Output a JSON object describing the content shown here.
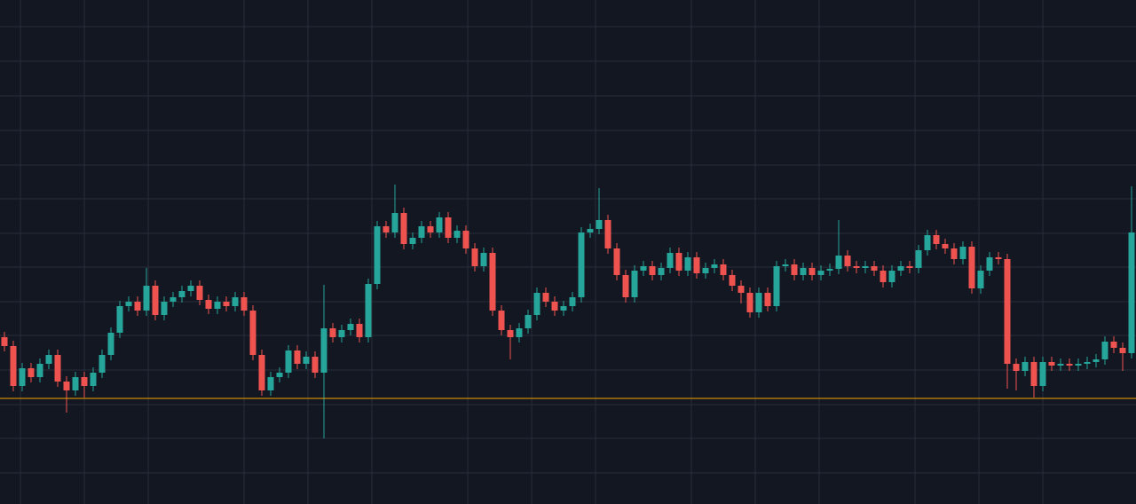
{
  "chart_data": {
    "type": "candlestick",
    "xlim": [
      -0.5,
      127.5
    ],
    "xticks": [
      1.8,
      9,
      16.2,
      27,
      34.2,
      41.4,
      52.2,
      59.4,
      66.6,
      77.4,
      84.6,
      91.8,
      102.6,
      109.8,
      117
    ],
    "ylim": [
      0,
      568
    ],
    "yticks": [
      538,
      499,
      460,
      421,
      382,
      344,
      305,
      267,
      228,
      190,
      151,
      112,
      74,
      35
    ],
    "grid": true,
    "up_color": "#26a69a",
    "down_color": "#ef5350",
    "price_line": 119,
    "price_line_color": "#f7a600",
    "open": [
      188,
      178,
      133,
      153,
      143,
      158,
      168,
      138,
      128,
      143,
      133,
      148,
      168,
      193,
      223,
      228,
      218,
      246,
      213,
      228,
      233,
      240,
      246,
      230,
      220,
      228,
      223,
      233,
      218,
      168,
      128,
      143,
      148,
      173,
      158,
      166,
      148,
      198,
      188,
      196,
      203,
      188,
      248,
      313,
      306,
      328,
      293,
      300,
      313,
      306,
      323,
      300,
      308,
      288,
      268,
      283,
      218,
      196,
      188,
      198,
      213,
      238,
      228,
      218,
      223,
      233,
      306,
      310,
      320,
      288,
      258,
      233,
      263,
      268,
      258,
      266,
      283,
      263,
      278,
      260,
      266,
      270,
      258,
      246,
      238,
      216,
      238,
      223,
      268,
      270,
      258,
      266,
      258,
      263,
      265,
      280,
      268,
      266,
      268,
      263,
      250,
      263,
      268,
      266,
      286,
      303,
      293,
      288,
      276,
      290,
      243,
      263,
      278,
      276,
      158,
      150,
      160,
      133,
      160,
      156,
      158,
      156,
      158,
      160,
      163,
      183,
      176,
      170
    ],
    "high": [
      194,
      184,
      159,
      159,
      164,
      174,
      174,
      144,
      149,
      149,
      154,
      174,
      199,
      229,
      234,
      234,
      266,
      252,
      234,
      239,
      246,
      252,
      252,
      236,
      234,
      234,
      239,
      239,
      224,
      174,
      149,
      154,
      179,
      179,
      172,
      172,
      247,
      204,
      202,
      209,
      209,
      254,
      319,
      319,
      360,
      334,
      306,
      319,
      319,
      329,
      329,
      314,
      314,
      294,
      289,
      289,
      224,
      202,
      204,
      219,
      244,
      244,
      234,
      229,
      239,
      312,
      316,
      356,
      326,
      294,
      264,
      269,
      274,
      274,
      272,
      289,
      289,
      284,
      284,
      272,
      276,
      276,
      264,
      252,
      244,
      244,
      244,
      274,
      276,
      276,
      272,
      272,
      269,
      271,
      320,
      286,
      274,
      274,
      274,
      269,
      269,
      274,
      274,
      292,
      309,
      309,
      299,
      294,
      296,
      296,
      269,
      284,
      284,
      282,
      164,
      166,
      166,
      166,
      166,
      164,
      164,
      164,
      166,
      169,
      189,
      189,
      182,
      358
    ],
    "low": [
      172,
      127,
      127,
      137,
      137,
      152,
      132,
      103,
      122,
      120,
      127,
      142,
      162,
      187,
      217,
      212,
      212,
      207,
      207,
      222,
      227,
      234,
      224,
      214,
      214,
      217,
      217,
      212,
      162,
      122,
      122,
      137,
      142,
      152,
      152,
      142,
      74,
      182,
      182,
      190,
      182,
      182,
      242,
      300,
      300,
      287,
      287,
      294,
      300,
      300,
      294,
      294,
      282,
      262,
      262,
      212,
      190,
      163,
      182,
      192,
      207,
      222,
      212,
      212,
      217,
      227,
      300,
      304,
      282,
      252,
      227,
      227,
      257,
      252,
      252,
      260,
      257,
      257,
      254,
      254,
      260,
      252,
      240,
      226,
      210,
      210,
      217,
      217,
      262,
      252,
      252,
      252,
      252,
      257,
      259,
      262,
      260,
      260,
      257,
      244,
      244,
      257,
      260,
      260,
      280,
      287,
      282,
      270,
      270,
      237,
      237,
      257,
      270,
      130,
      128,
      144,
      120,
      127,
      150,
      150,
      150,
      150,
      152,
      154,
      157,
      170,
      150,
      164
    ],
    "close": [
      178,
      133,
      153,
      143,
      158,
      168,
      138,
      128,
      143,
      133,
      148,
      168,
      193,
      223,
      228,
      218,
      246,
      213,
      228,
      233,
      240,
      246,
      230,
      220,
      228,
      223,
      233,
      218,
      168,
      128,
      143,
      148,
      173,
      158,
      166,
      148,
      198,
      188,
      196,
      203,
      188,
      248,
      313,
      306,
      328,
      293,
      300,
      313,
      306,
      323,
      300,
      308,
      288,
      268,
      283,
      218,
      196,
      188,
      198,
      213,
      238,
      228,
      218,
      223,
      233,
      306,
      310,
      320,
      288,
      258,
      233,
      263,
      268,
      258,
      266,
      283,
      263,
      278,
      260,
      266,
      270,
      258,
      246,
      238,
      216,
      238,
      223,
      268,
      270,
      258,
      266,
      258,
      263,
      265,
      280,
      268,
      266,
      268,
      263,
      250,
      263,
      268,
      266,
      286,
      303,
      293,
      288,
      276,
      290,
      243,
      263,
      278,
      276,
      158,
      150,
      160,
      133,
      160,
      156,
      158,
      156,
      158,
      160,
      163,
      183,
      176,
      170,
      306
    ]
  }
}
